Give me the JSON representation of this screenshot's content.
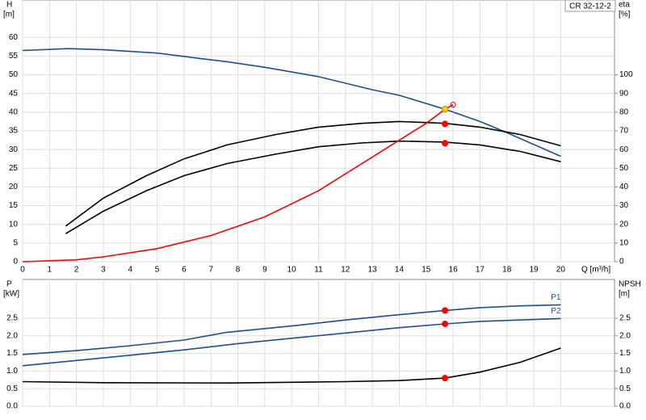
{
  "chart_data": [
    {
      "type": "line",
      "label": "CR 32-12-2",
      "y_label": "H",
      "y_unit": "[m]",
      "y2_label": "eta",
      "y2_unit": "[%]",
      "x_label": "Q [m³/h]",
      "xlim": [
        0,
        22
      ],
      "xticks": [
        0,
        1,
        2,
        3,
        4,
        5,
        6,
        7,
        8,
        9,
        10,
        11,
        12,
        13,
        14,
        15,
        16,
        17,
        18,
        19,
        20
      ],
      "ylim": [
        0,
        70
      ],
      "yticks": [
        0,
        5,
        10,
        15,
        20,
        25,
        30,
        35,
        40,
        45,
        50,
        55,
        60
      ],
      "y2lim": [
        0,
        140
      ],
      "y2ticks": [
        0,
        10,
        20,
        30,
        40,
        50,
        60,
        70,
        80,
        90,
        100
      ],
      "grid": true,
      "series": [
        {
          "color": "#1f4e8c",
          "x": [
            0,
            1.7,
            3,
            5,
            7,
            7.6,
            9,
            11,
            13,
            14,
            15.7,
            17,
            18,
            20
          ],
          "values": [
            56.5,
            57,
            56.7,
            55.8,
            54,
            53.5,
            52,
            49.5,
            46,
            44.5,
            40.8,
            37.5,
            34.5,
            28.2
          ]
        },
        {
          "color": "#000000",
          "axis": "y2",
          "x": [
            1.6,
            3,
            4.6,
            6,
            7.6,
            9.4,
            11,
            12.6,
            14,
            15.7,
            17,
            18.5,
            20
          ],
          "values": [
            19,
            34,
            46,
            55,
            62.5,
            68,
            72,
            74,
            75,
            74,
            72,
            68,
            62
          ]
        },
        {
          "color": "#000000",
          "axis": "y2",
          "x": [
            1.6,
            3,
            4.6,
            6,
            7.6,
            9.4,
            11,
            12.6,
            14,
            15.7,
            17,
            18.5,
            20
          ],
          "values": [
            15,
            27,
            38,
            46,
            52.5,
            57.5,
            61.5,
            63.5,
            64.5,
            64,
            62.5,
            59,
            53.5
          ]
        },
        {
          "color": "#ff0000",
          "x": [
            0,
            2,
            3,
            5,
            7,
            9,
            11,
            13,
            15,
            15.7,
            16
          ],
          "values": [
            0,
            0.5,
            1.3,
            3.5,
            7,
            12,
            19,
            28,
            37,
            40.8,
            42
          ]
        }
      ],
      "markers": [
        {
          "x": 15.7,
          "y": 40.8,
          "color": "#ffd700"
        },
        {
          "x": 15.7,
          "y": 73.7,
          "axis": "y2",
          "color": "#ff0000"
        },
        {
          "x": 15.7,
          "y": 63.4,
          "axis": "y2",
          "color": "#ff0000"
        }
      ]
    },
    {
      "type": "line",
      "y_label": "P",
      "y_unit": "[kW]",
      "y2_label": "NPSH",
      "y2_unit": "[m]",
      "xlim": [
        0,
        22
      ],
      "xticks": [
        0,
        1,
        2,
        3,
        4,
        5,
        6,
        7,
        8,
        9,
        10,
        11,
        12,
        13,
        14,
        15,
        16,
        17,
        18,
        19,
        20
      ],
      "ylim": [
        0,
        3.6
      ],
      "yticks": [
        {
          "value": 0,
          "label": "0.0"
        },
        0.5,
        {
          "value": 1,
          "label": "1.0"
        },
        1.5,
        {
          "value": 2,
          "label": "2.0"
        },
        2.5
      ],
      "y2lim": [
        0,
        3.6
      ],
      "y2ticks": [
        {
          "value": 0,
          "label": "0.0"
        },
        0.5,
        {
          "value": 1,
          "label": "1.0"
        },
        1.5,
        {
          "value": 2,
          "label": "2.0"
        },
        2.5
      ],
      "grid": true,
      "series": [
        {
          "name": "P1",
          "color": "#1f4e8c",
          "x": [
            0,
            2,
            4,
            6,
            7.6,
            10,
            12,
            14,
            15.7,
            17,
            18.5,
            20
          ],
          "values": [
            1.47,
            1.58,
            1.72,
            1.88,
            2.1,
            2.28,
            2.45,
            2.6,
            2.72,
            2.8,
            2.85,
            2.88
          ]
        },
        {
          "name": "P2",
          "color": "#1f4e8c",
          "x": [
            0,
            2,
            4,
            6,
            8,
            10,
            12,
            14,
            15.7,
            17,
            20
          ],
          "values": [
            1.15,
            1.3,
            1.45,
            1.6,
            1.78,
            1.93,
            2.08,
            2.23,
            2.34,
            2.41,
            2.49
          ]
        },
        {
          "color": "#000000",
          "axis": "y2",
          "x": [
            0,
            3,
            7.6,
            10,
            12,
            14,
            15.7,
            17,
            18.5,
            20
          ],
          "values": [
            0.7,
            0.67,
            0.66,
            0.68,
            0.7,
            0.73,
            0.8,
            0.97,
            1.25,
            1.65
          ]
        }
      ],
      "markers": [
        {
          "x": 15.7,
          "y": 2.72,
          "color": "#ff0000"
        },
        {
          "x": 15.7,
          "y": 2.34,
          "color": "#ff0000"
        },
        {
          "x": 15.7,
          "y": 0.8,
          "axis": "y2",
          "color": "#ff0000"
        }
      ]
    }
  ]
}
